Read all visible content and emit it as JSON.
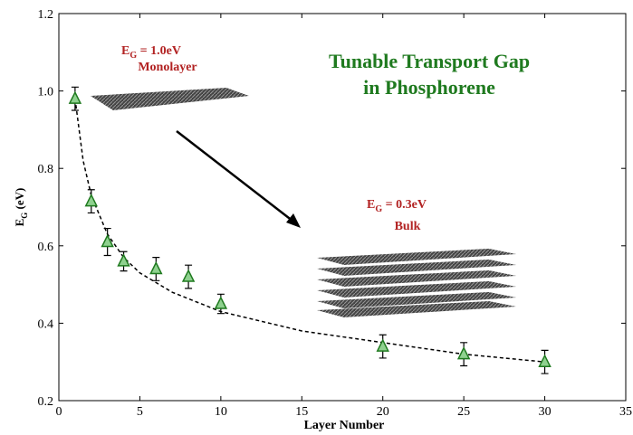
{
  "chart_data": {
    "type": "scatter",
    "title": [
      "Tunable Transport Gap",
      "in Phosphorene"
    ],
    "xlabel": "Layer Number",
    "ylabel": {
      "symbol": "E",
      "subscript": "G",
      "text": " (eV)"
    },
    "monolayer_label": {
      "symbol": "E",
      "subscript": "G",
      "text": " = 1.0eV",
      "caption": "Monolayer"
    },
    "bulk_label": {
      "symbol": "E",
      "subscript": "G",
      "text": " = 0.3eV",
      "caption": "Bulk"
    },
    "xlim": [
      0,
      35
    ],
    "ylim": [
      0.2,
      1.2
    ],
    "xticks": [
      0,
      5,
      10,
      15,
      20,
      25,
      30,
      35
    ],
    "yticks": [
      0.2,
      0.4,
      0.6,
      0.8,
      {
        "value": 1,
        "label": "1.0"
      },
      1.2
    ],
    "series": [
      {
        "color": "#1f7a1f",
        "fill": "#8fd18f",
        "marker": "triangle",
        "x": [
          1,
          2,
          3,
          4,
          6,
          8,
          10,
          20,
          25,
          30
        ],
        "values": [
          0.98,
          0.715,
          0.61,
          0.56,
          0.54,
          0.52,
          0.45,
          0.34,
          0.32,
          0.3
        ],
        "errors": [
          0.03,
          0.03,
          0.035,
          0.025,
          0.03,
          0.03,
          0.025,
          0.03,
          0.03,
          0.03
        ]
      },
      {
        "color": "#000000",
        "marker": "dashed-line",
        "x": [
          1,
          1.5,
          2,
          3,
          4,
          5,
          7,
          10,
          15,
          20,
          25,
          30
        ],
        "values": [
          0.98,
          0.82,
          0.73,
          0.63,
          0.57,
          0.53,
          0.48,
          0.43,
          0.38,
          0.35,
          0.32,
          0.3
        ]
      }
    ]
  }
}
